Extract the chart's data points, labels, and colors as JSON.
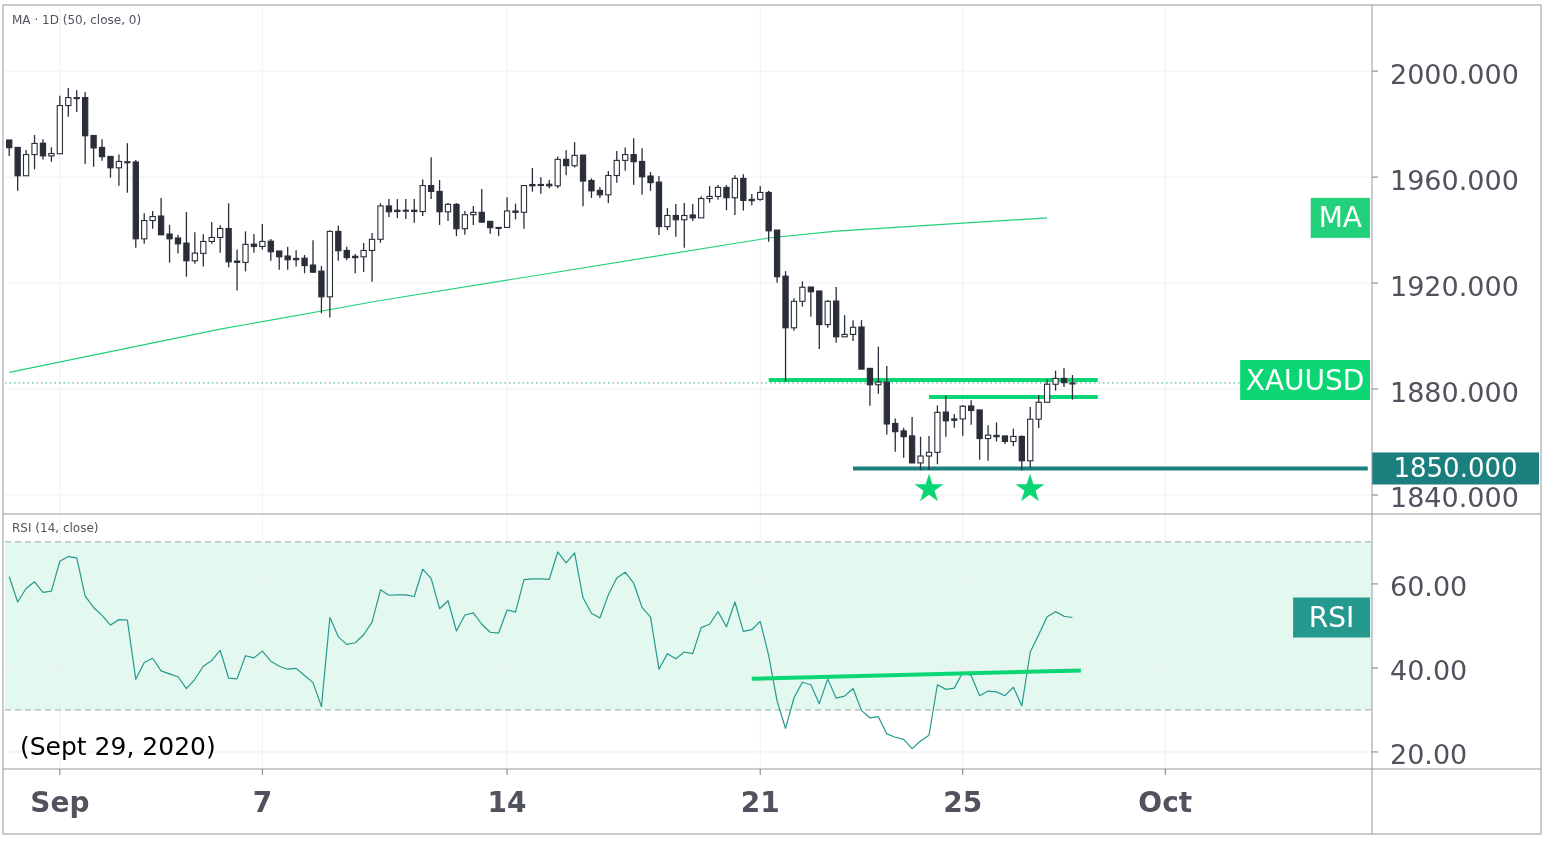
{
  "chart_data": [
    {
      "type": "candlestick",
      "title": "MA · 1D (50, close, 0)",
      "categories": [
        null,
        null,
        null,
        null,
        null,
        null,
        null,
        null,
        null,
        null,
        null,
        null,
        null,
        null,
        null,
        null,
        null,
        null,
        null,
        null,
        null,
        null,
        null,
        null,
        null,
        null,
        null,
        null,
        null,
        null,
        null,
        null,
        null,
        null,
        null,
        null,
        null,
        null,
        null,
        null,
        null,
        null,
        null,
        null,
        null,
        null,
        null,
        null,
        null,
        null,
        null,
        null,
        null,
        null,
        null,
        null,
        null,
        null,
        null,
        null,
        null,
        null,
        null,
        null,
        null,
        null,
        null,
        null,
        null,
        null,
        null,
        null,
        null,
        null,
        null,
        null,
        null,
        null,
        null,
        null,
        null,
        null,
        null,
        null,
        null,
        null,
        null,
        null,
        null,
        null,
        null,
        null,
        null,
        null,
        null,
        null,
        null,
        null,
        null,
        null,
        null,
        null,
        null,
        null,
        null,
        null,
        null,
        null,
        null,
        null,
        null,
        null,
        null,
        null,
        null,
        null,
        null,
        null,
        null,
        null,
        null,
        null,
        null,
        null,
        null,
        null,
        null,
        null,
        null,
        null,
        null,
        null,
        null,
        null,
        null,
        null,
        null,
        null,
        null,
        null,
        null,
        null,
        null,
        null,
        null,
        null,
        null,
        null,
        null,
        null,
        null,
        null,
        null,
        null,
        null,
        null,
        null,
        null,
        null,
        null,
        null,
        null
      ],
      "ylim": [
        1833.2,
        2024.2
      ],
      "yticks": [
        {
          "value": 1840,
          "label": "1840.000"
        },
        {
          "value": 1880,
          "label": "1880.000"
        },
        {
          "value": 1920,
          "label": "1920.000"
        },
        {
          "value": 1960,
          "label": "1960.000"
        },
        {
          "value": 2000,
          "label": "2000.000"
        }
      ],
      "grid": true,
      "tick_labels": "y",
      "ref_lines": [
        {
          "axis": "y",
          "value": 1882.3,
          "color": "#26a69a",
          "line_style": "dotted"
        }
      ],
      "series": [
        {
          "color": "#2a2e39",
          "ohlc": [
            [
              1974,
              1974,
              1968,
              1971.1
            ],
            [
              1971.2,
              1971.2,
              1954.8,
              1960.5
            ],
            [
              1960.5,
              1970.2,
              1960.5,
              1968.5
            ],
            [
              1968.5,
              1975.9,
              1962.9,
              1972.7
            ],
            [
              1972.8,
              1974.3,
              1966.6,
              1968
            ],
            [
              1968,
              1971.2,
              1965.8,
              1968.9
            ],
            [
              1968.8,
              1990.7,
              1968.8,
              1987
            ],
            [
              1987,
              1993.6,
              1982.8,
              1990
            ],
            [
              1990,
              1992.8,
              1984.6,
              1990
            ],
            [
              1990,
              1992.1,
              1964.9,
              1975.6
            ],
            [
              1975.7,
              1975.7,
              1963.9,
              1971
            ],
            [
              1971.2,
              1974.3,
              1966.2,
              1967.7
            ],
            [
              1967.8,
              1967.8,
              1959.8,
              1963.5
            ],
            [
              1963.5,
              1968.5,
              1956.7,
              1965.9
            ],
            [
              1965.8,
              1972.8,
              1954.1,
              1965.8
            ],
            [
              1965.7,
              1966.4,
              1933.3,
              1936.7
            ],
            [
              1936.7,
              1946.3,
              1934.8,
              1943.6
            ],
            [
              1943.6,
              1947.2,
              1940.5,
              1945.1
            ],
            [
              1945.3,
              1952.1,
              1938.2,
              1938.2
            ],
            [
              1938.5,
              1942,
              1927.7,
              1936.7
            ],
            [
              1937,
              1938.1,
              1931.2,
              1934.8
            ],
            [
              1935.1,
              1946.8,
              1922.4,
              1928.4
            ],
            [
              1928.4,
              1939.2,
              1927.3,
              1931.3
            ],
            [
              1931.2,
              1938.4,
              1926.2,
              1935.7
            ],
            [
              1935.7,
              1943,
              1934.8,
              1937.2
            ],
            [
              1937.2,
              1941.8,
              1931.4,
              1940.6
            ],
            [
              1940.6,
              1950.1,
              1925.9,
              1928
            ],
            [
              1928.3,
              1932.7,
              1917.2,
              1927.8
            ],
            [
              1927.8,
              1939.5,
              1924.4,
              1934.6
            ],
            [
              1934.7,
              1938.5,
              1931.4,
              1933.8
            ],
            [
              1933.8,
              1942.3,
              1932.6,
              1935.7
            ],
            [
              1935.8,
              1936.6,
              1928.4,
              1931.8
            ],
            [
              1932.1,
              1932.1,
              1925,
              1929.9
            ],
            [
              1930.2,
              1933.7,
              1925,
              1928.8
            ],
            [
              1929.3,
              1932.4,
              1926.2,
              1928.8
            ],
            [
              1929.4,
              1930.6,
              1923.7,
              1926.6
            ],
            [
              1926.8,
              1936.2,
              1924,
              1924.1
            ],
            [
              1924.5,
              1926.4,
              1908.6,
              1914.8
            ],
            [
              1914.8,
              1939.8,
              1907,
              1939.5
            ],
            [
              1939.5,
              1941.6,
              1928.4,
              1932.2
            ],
            [
              1932.3,
              1933.7,
              1928.6,
              1929.6
            ],
            [
              1930.1,
              1931,
              1923.7,
              1929.6
            ],
            [
              1929.9,
              1935.1,
              1924.2,
              1932.3
            ],
            [
              1932.3,
              1938.9,
              1920.5,
              1936.5
            ],
            [
              1936.5,
              1950.1,
              1935.2,
              1949.1
            ],
            [
              1949.1,
              1951.7,
              1944.9,
              1946.9
            ],
            [
              1947.5,
              1951.7,
              1944.5,
              1947
            ],
            [
              1947.5,
              1951.7,
              1944.2,
              1947.5
            ],
            [
              1947.5,
              1951.7,
              1942.8,
              1947
            ],
            [
              1947,
              1959.1,
              1945.3,
              1956.8
            ],
            [
              1956.8,
              1967.5,
              1951.7,
              1954.6
            ],
            [
              1954.6,
              1958.9,
              1941.9,
              1946.9
            ],
            [
              1946.9,
              1950.2,
              1943.4,
              1949.7
            ],
            [
              1949.7,
              1950.2,
              1937.7,
              1940.5
            ],
            [
              1940.5,
              1947.2,
              1938.2,
              1945.8
            ],
            [
              1945.8,
              1949.1,
              1941.9,
              1946.7
            ],
            [
              1946.7,
              1955.5,
              1942.8,
              1943
            ],
            [
              1943.3,
              1943.3,
              1938.6,
              1940.9
            ],
            [
              1941,
              1941,
              1937.7,
              1941
            ],
            [
              1941,
              1952.4,
              1941,
              1947.2
            ],
            [
              1947.2,
              1950,
              1944,
              1946.7
            ],
            [
              1946.7,
              1956.8,
              1940.5,
              1956.8
            ],
            [
              1957.2,
              1963.4,
              1954.5,
              1956.7
            ],
            [
              1957.2,
              1959.9,
              1953.7,
              1957.2
            ],
            [
              1957.3,
              1958.9,
              1955.8,
              1956.7
            ],
            [
              1956.7,
              1967.8,
              1955.8,
              1966.7
            ],
            [
              1966.7,
              1970.1,
              1960.7,
              1964.3
            ],
            [
              1964.3,
              1973.2,
              1963.6,
              1968.2
            ],
            [
              1968.3,
              1968.3,
              1949,
              1958.5
            ],
            [
              1958.7,
              1959.5,
              1952.1,
              1954.8
            ],
            [
              1955,
              1956.3,
              1952.1,
              1953.3
            ],
            [
              1953.3,
              1962.3,
              1950.2,
              1960.6
            ],
            [
              1960.6,
              1969.8,
              1957.9,
              1966.3
            ],
            [
              1966.3,
              1971.2,
              1962.4,
              1968.5
            ],
            [
              1968.5,
              1974.7,
              1957.1,
              1965.8
            ],
            [
              1965.9,
              1970.9,
              1953.3,
              1960.1
            ],
            [
              1960.4,
              1961.9,
              1954.8,
              1957.9
            ],
            [
              1958.1,
              1960.4,
              1938.1,
              1941.3
            ],
            [
              1941.3,
              1948.3,
              1940,
              1945.5
            ],
            [
              1945.5,
              1949.8,
              1937.5,
              1943.9
            ],
            [
              1943.9,
              1950.2,
              1933.3,
              1945.5
            ],
            [
              1945.7,
              1949.8,
              1943.4,
              1944.6
            ],
            [
              1944.6,
              1952.8,
              1944.6,
              1951.9
            ],
            [
              1951.9,
              1956.6,
              1950.3,
              1952.7
            ],
            [
              1952.7,
              1957,
              1951.4,
              1956.1
            ],
            [
              1956.1,
              1957,
              1947.5,
              1952.2
            ],
            [
              1952.2,
              1960.7,
              1945.7,
              1959.5
            ],
            [
              1959.5,
              1961.1,
              1947.4,
              1951.2
            ],
            [
              1951.6,
              1953.6,
              1949.3,
              1951.1
            ],
            [
              1951.6,
              1956.6,
              1951.1,
              1954.2
            ],
            [
              1954.2,
              1954.8,
              1935.6,
              1939.7
            ],
            [
              1940,
              1940,
              1920.1,
              1922.4
            ],
            [
              1922.6,
              1924.5,
              1882.8,
              1903.1
            ],
            [
              1903.1,
              1914.3,
              1902,
              1913.1
            ],
            [
              1913.1,
              1920.6,
              1911.1,
              1918.4
            ],
            [
              1918.5,
              1918.5,
              1907.3,
              1916.7
            ],
            [
              1917,
              1917,
              1895.1,
              1904.3
            ],
            [
              1904.3,
              1913.6,
              1903.1,
              1913.1
            ],
            [
              1913.2,
              1918.5,
              1897.5,
              1899.7
            ],
            [
              1899.7,
              1907.9,
              1899.7,
              1900.6
            ],
            [
              1900.6,
              1906,
              1898.1,
              1903.3
            ],
            [
              1903.4,
              1906,
              1887.5,
              1887.5
            ],
            [
              1887.8,
              1887.8,
              1873.7,
              1881.6
            ],
            [
              1881.6,
              1896,
              1878.2,
              1882.6
            ],
            [
              1882.6,
              1888.7,
              1862.8,
              1866.8
            ],
            [
              1867,
              1868.9,
              1856.3,
              1863.9
            ],
            [
              1864.2,
              1865.4,
              1854.1,
              1862
            ],
            [
              1862.3,
              1869.4,
              1852.1,
              1852.1
            ],
            [
              1852.1,
              1862,
              1849.4,
              1854.7
            ],
            [
              1854.7,
              1862.3,
              1849.4,
              1856.1
            ],
            [
              1856.1,
              1873.8,
              1851.6,
              1871.2
            ],
            [
              1871.3,
              1877.5,
              1862,
              1868
            ],
            [
              1868.7,
              1870.6,
              1865.4,
              1868.2
            ],
            [
              1868.7,
              1874,
              1862.4,
              1873.5
            ],
            [
              1873.6,
              1875.8,
              1866.5,
              1871.9
            ],
            [
              1872.1,
              1872.1,
              1853.3,
              1861.3
            ],
            [
              1861.3,
              1866.3,
              1852.9,
              1862.6
            ],
            [
              1862.5,
              1867.4,
              1860.2,
              1862
            ],
            [
              1862.3,
              1862.3,
              1859.2,
              1860.2
            ],
            [
              1860.2,
              1865,
              1858.4,
              1862.1
            ],
            [
              1862.1,
              1862.5,
              1849.2,
              1852.9
            ],
            [
              1852.9,
              1873.2,
              1850.3,
              1868.6
            ],
            [
              1868.6,
              1877.6,
              1865.3,
              1875
            ],
            [
              1875,
              1883.6,
              1875,
              1881.8
            ],
            [
              1881.8,
              1886.9,
              1879.4,
              1884
            ],
            [
              1884,
              1887.9,
              1880.8,
              1882.4
            ],
            [
              1882.3,
              1885.3,
              1876,
              1882.3
            ],
            null,
            null,
            null,
            null,
            null,
            null,
            null,
            null,
            null,
            null,
            null,
            null,
            null,
            null,
            null,
            null,
            null,
            null,
            null,
            null,
            null,
            null,
            null,
            null,
            null,
            null,
            null,
            null,
            null,
            null,
            null,
            null,
            null,
            null,
            null
          ]
        },
        {
          "name": "MA",
          "type": "line",
          "color": "#22d17a",
          "values": [
            1886.3,
            null,
            null,
            null,
            null,
            null,
            null,
            null,
            null,
            null,
            null,
            null,
            null,
            null,
            null,
            null,
            null,
            null,
            null,
            null,
            null,
            null,
            null,
            null,
            null,
            1902.6,
            null,
            null,
            null,
            null,
            null,
            null,
            null,
            null,
            null,
            null,
            null,
            null,
            null,
            null,
            null,
            null,
            null,
            null,
            1913.4,
            null,
            null,
            null,
            null,
            null,
            null,
            null,
            null,
            null,
            null,
            null,
            null,
            null,
            null,
            null,
            null,
            null,
            null,
            null,
            null,
            null,
            null,
            null,
            null,
            null,
            null,
            null,
            null,
            null,
            null,
            null,
            null,
            null,
            null,
            null,
            null,
            null,
            null,
            null,
            null,
            null,
            null,
            null,
            null,
            null,
            1937,
            null,
            null,
            null,
            null,
            null,
            null,
            null,
            1939.6,
            null,
            null,
            null,
            null,
            null,
            null,
            null,
            null,
            null,
            null,
            null,
            null,
            null,
            null,
            null,
            null,
            null,
            null,
            null,
            null,
            null,
            null,
            null,
            null,
            1944.6,
            null,
            null,
            null,
            null,
            null,
            null,
            null,
            null,
            null,
            null,
            null,
            null,
            null,
            null,
            null,
            null,
            null,
            null,
            null,
            null,
            null,
            null,
            null,
            null,
            null,
            null,
            null,
            null,
            null,
            null,
            null,
            null,
            null,
            null,
            null,
            null,
            null,
            null
          ]
        },
        {
          "name": "XAUUSD",
          "type": "line",
          "color": "#0cd674",
          "values": [
            null,
            null,
            null,
            null,
            null,
            null,
            null,
            null,
            null,
            null,
            null,
            null,
            null,
            null,
            null,
            null,
            null,
            null,
            null,
            null,
            null,
            null,
            null,
            null,
            null,
            null,
            null,
            null,
            null,
            null,
            null,
            null,
            null,
            null,
            null,
            null,
            null,
            null,
            null,
            null,
            null,
            null,
            null,
            null,
            null,
            null,
            null,
            null,
            null,
            null,
            null,
            null,
            null,
            null,
            null,
            null,
            null,
            null,
            null,
            null,
            null,
            null,
            null,
            null,
            null,
            null,
            null,
            null,
            null,
            null,
            null,
            null,
            null,
            null,
            null,
            null,
            null,
            null,
            null,
            null,
            null,
            null,
            null,
            null,
            null,
            null,
            null,
            null,
            null,
            null,
            1883.4,
            null,
            null,
            null,
            null,
            null,
            null,
            null,
            null,
            null,
            null,
            null,
            null,
            null,
            null,
            null,
            null,
            null,
            null,
            null,
            null,
            null,
            null,
            null,
            null,
            null,
            null,
            null,
            null,
            null,
            null,
            null,
            null,
            null,
            null,
            null,
            null,
            null,
            null,
            1883.4,
            null,
            null,
            null,
            null,
            null,
            null,
            null,
            null,
            null,
            null,
            null,
            null,
            null,
            null,
            null,
            null,
            null,
            null,
            null,
            null,
            null,
            null,
            null,
            null,
            null,
            null,
            null,
            null,
            null,
            null,
            null,
            null
          ]
        },
        {
          "type": "line",
          "color": "#0cd674",
          "values": [
            null,
            null,
            null,
            null,
            null,
            null,
            null,
            null,
            null,
            null,
            null,
            null,
            null,
            null,
            null,
            null,
            null,
            null,
            null,
            null,
            null,
            null,
            null,
            null,
            null,
            null,
            null,
            null,
            null,
            null,
            null,
            null,
            null,
            null,
            null,
            null,
            null,
            null,
            null,
            null,
            null,
            null,
            null,
            null,
            null,
            null,
            null,
            null,
            null,
            null,
            null,
            null,
            null,
            null,
            null,
            null,
            null,
            null,
            null,
            null,
            null,
            null,
            null,
            null,
            null,
            null,
            null,
            null,
            null,
            null,
            null,
            null,
            null,
            null,
            null,
            null,
            null,
            null,
            null,
            null,
            null,
            null,
            null,
            null,
            null,
            null,
            null,
            null,
            null,
            null,
            null,
            null,
            null,
            null,
            null,
            null,
            null,
            null,
            null,
            null,
            null,
            null,
            null,
            null,
            null,
            null,
            null,
            null,
            null,
            1877,
            null,
            null,
            null,
            null,
            null,
            null,
            null,
            null,
            null,
            null,
            null,
            null,
            null,
            null,
            null,
            null,
            null,
            null,
            null,
            1877,
            null,
            null,
            null,
            null,
            null,
            null,
            null,
            null,
            null,
            null,
            null,
            null,
            null,
            null,
            null,
            null,
            null,
            null,
            null,
            null,
            null,
            null,
            null,
            null,
            null,
            null,
            null,
            null,
            null,
            null,
            null,
            null
          ]
        },
        {
          "name": "1850.000",
          "type": "line",
          "color": "#1a7f7d",
          "values": [
            null,
            null,
            null,
            null,
            null,
            null,
            null,
            null,
            null,
            null,
            null,
            null,
            null,
            null,
            null,
            null,
            null,
            null,
            null,
            null,
            null,
            null,
            null,
            null,
            null,
            null,
            null,
            null,
            null,
            null,
            null,
            null,
            null,
            null,
            null,
            null,
            null,
            null,
            null,
            null,
            null,
            null,
            null,
            null,
            null,
            null,
            null,
            null,
            null,
            null,
            null,
            null,
            null,
            null,
            null,
            null,
            null,
            null,
            null,
            null,
            null,
            null,
            null,
            null,
            null,
            null,
            null,
            null,
            null,
            null,
            null,
            null,
            null,
            null,
            null,
            null,
            null,
            null,
            null,
            null,
            null,
            null,
            null,
            null,
            null,
            null,
            null,
            null,
            null,
            null,
            null,
            null,
            null,
            null,
            null,
            null,
            null,
            null,
            null,
            null,
            1850,
            null,
            null,
            null,
            null,
            null,
            null,
            null,
            null,
            null,
            null,
            null,
            null,
            null,
            null,
            null,
            null,
            null,
            null,
            null,
            null,
            null,
            null,
            null,
            null,
            null,
            null,
            null,
            null,
            null,
            null,
            null,
            null,
            null,
            null,
            null,
            null,
            null,
            null,
            null,
            null,
            null,
            null,
            null,
            null,
            null,
            null,
            null,
            null,
            null,
            null,
            null,
            null,
            null,
            null,
            null,
            null,
            null,
            null,
            null,
            null,
            1850
          ]
        }
      ]
    },
    {
      "type": "line",
      "title": "RSI (14, close)",
      "categories": [
        null,
        null,
        null,
        null,
        null,
        null,
        "Sep",
        null,
        null,
        null,
        null,
        null,
        null,
        null,
        null,
        null,
        null,
        null,
        null,
        null,
        null,
        null,
        null,
        null,
        null,
        null,
        null,
        null,
        null,
        null,
        "7",
        null,
        null,
        null,
        null,
        null,
        null,
        null,
        null,
        null,
        null,
        null,
        null,
        null,
        null,
        null,
        null,
        null,
        null,
        null,
        null,
        null,
        null,
        null,
        null,
        null,
        null,
        null,
        null,
        "14",
        null,
        null,
        null,
        null,
        null,
        null,
        null,
        null,
        null,
        null,
        null,
        null,
        null,
        null,
        null,
        null,
        null,
        null,
        null,
        null,
        null,
        null,
        null,
        null,
        null,
        null,
        null,
        null,
        null,
        "21",
        null,
        null,
        null,
        null,
        null,
        null,
        null,
        null,
        null,
        null,
        null,
        null,
        null,
        null,
        null,
        null,
        null,
        null,
        null,
        null,
        null,
        null,
        null,
        "25",
        null,
        null,
        null,
        null,
        null,
        null,
        null,
        null,
        null,
        null,
        null,
        null,
        null,
        null,
        null,
        null,
        null,
        null,
        null,
        null,
        null,
        null,
        null,
        "Oct",
        null,
        null,
        null,
        null,
        null,
        null,
        null,
        null,
        null,
        null,
        null,
        null,
        null,
        null,
        null,
        null,
        null,
        null,
        null,
        null,
        null,
        null,
        null,
        null
      ],
      "ylim": [
        15.95,
        76.4
      ],
      "yticks": [
        {
          "value": 20,
          "label": "20.00"
        },
        {
          "value": 40,
          "label": "40.00"
        },
        {
          "value": 60,
          "label": "60.00"
        }
      ],
      "grid": true,
      "bands": [
        {
          "axis": "y",
          "from": 30,
          "to": 70,
          "color": "#e3f8ef"
        }
      ],
      "ref_lines": [
        {
          "axis": "y",
          "value": 70,
          "color": "#a0a4ac",
          "line_style": "dashed"
        },
        {
          "axis": "y",
          "value": 30,
          "color": "#a0a4ac",
          "line_style": "dashed"
        }
      ],
      "annotations": [
        "(Sept 29, 2020)"
      ],
      "series": [
        {
          "name": "RSI",
          "color": "#26998f",
          "values": [
            61.7,
            55.7,
            58.9,
            60.5,
            58,
            58.3,
            65.4,
            66.5,
            66.2,
            57.1,
            54.4,
            52.5,
            50.2,
            51.5,
            51.4,
            37.3,
            41.3,
            42.3,
            39.3,
            38.6,
            37.9,
            35.1,
            37.3,
            40.4,
            41.8,
            44.2,
            37.6,
            37.4,
            42.9,
            42.4,
            44,
            41.6,
            40.4,
            39.7,
            39.9,
            38.2,
            36.5,
            30.8,
            52,
            47.4,
            45.6,
            46,
            47.9,
            50.9,
            58.6,
            57.3,
            57.4,
            57.4,
            57,
            63.5,
            61.3,
            54.1,
            56,
            48.8,
            52.6,
            53.1,
            50.4,
            48.5,
            48.3,
            53.8,
            53.3,
            61,
            61.2,
            61.2,
            61.1,
            67.6,
            65,
            67.4,
            56.7,
            53,
            51.9,
            57.4,
            61.4,
            62.8,
            60.2,
            54.4,
            52.1,
            39.7,
            43.4,
            42.2,
            43.8,
            43.4,
            49.6,
            50.4,
            53.4,
            49.8,
            55.7,
            48.7,
            49.1,
            51.1,
            43,
            32.1,
            25.6,
            32.9,
            36.6,
            36,
            31.5,
            37.4,
            32.8,
            33.3,
            35.1,
            29.9,
            28.1,
            28.4,
            24.3,
            23.5,
            23,
            20.8,
            22.6,
            24,
            36,
            34.9,
            35.2,
            38.9,
            38.2,
            33.4,
            34.5,
            34.3,
            33.4,
            35.4,
            31,
            43.8,
            47.9,
            52.2,
            53.4,
            52.3,
            52,
            null,
            null,
            null,
            null,
            null,
            null,
            null,
            null,
            null,
            null,
            null,
            null,
            null,
            null,
            null,
            null,
            null,
            null,
            null,
            null,
            null,
            null,
            null,
            null,
            null,
            null,
            null,
            null,
            null,
            null,
            null,
            null,
            null,
            null,
            null
          ]
        },
        {
          "color": "#0cd674",
          "values": [
            null,
            null,
            null,
            null,
            null,
            null,
            null,
            null,
            null,
            null,
            null,
            null,
            null,
            null,
            null,
            null,
            null,
            null,
            null,
            null,
            null,
            null,
            null,
            null,
            null,
            null,
            null,
            null,
            null,
            null,
            null,
            null,
            null,
            null,
            null,
            null,
            null,
            null,
            null,
            null,
            null,
            null,
            null,
            null,
            null,
            null,
            null,
            null,
            null,
            null,
            null,
            null,
            null,
            null,
            null,
            null,
            null,
            null,
            null,
            null,
            null,
            null,
            null,
            null,
            null,
            null,
            null,
            null,
            null,
            null,
            null,
            null,
            null,
            null,
            null,
            null,
            null,
            null,
            null,
            null,
            null,
            null,
            null,
            null,
            null,
            null,
            null,
            null,
            37.4,
            null,
            null,
            null,
            null,
            null,
            null,
            null,
            null,
            null,
            null,
            null,
            null,
            null,
            null,
            null,
            null,
            null,
            null,
            null,
            null,
            null,
            null,
            null,
            null,
            null,
            null,
            null,
            null,
            null,
            null,
            null,
            null,
            null,
            null,
            null,
            null,
            null,
            null,
            39.4,
            null,
            null,
            null,
            null,
            null,
            null,
            null,
            null,
            null,
            null,
            null,
            null,
            null,
            null,
            null,
            null,
            null,
            null,
            null,
            null,
            null,
            null,
            null,
            null,
            null,
            null,
            null,
            null,
            null,
            null,
            null,
            null,
            null,
            null
          ]
        }
      ]
    }
  ]
}
